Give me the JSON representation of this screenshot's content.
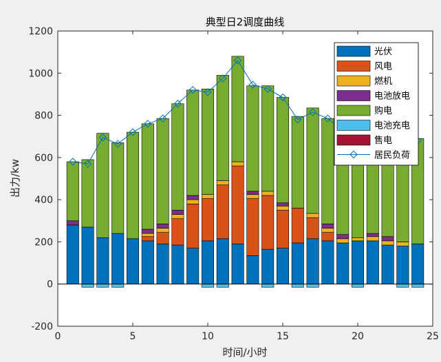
{
  "chart_data": {
    "type": "bar",
    "stacked": true,
    "title": "典型日2调度曲线",
    "xlabel": "时间/小时",
    "ylabel": "出力/kw",
    "xlim": [
      0,
      25
    ],
    "ylim": [
      -200,
      1200
    ],
    "xticks": [
      0,
      5,
      10,
      15,
      20,
      25
    ],
    "yticks": [
      -200,
      0,
      200,
      400,
      600,
      800,
      1000,
      1200
    ],
    "grid": false,
    "legend_position": "top-right",
    "x": [
      1,
      2,
      3,
      4,
      5,
      6,
      7,
      8,
      9,
      10,
      11,
      12,
      13,
      14,
      15,
      16,
      17,
      18,
      19,
      20,
      21,
      22,
      23,
      24
    ],
    "series": [
      {
        "name": "光伏",
        "color": "#0072BD",
        "values": [
          280,
          270,
          220,
          240,
          215,
          205,
          190,
          185,
          170,
          205,
          215,
          190,
          135,
          165,
          170,
          195,
          215,
          205,
          195,
          205,
          205,
          185,
          180,
          190
        ]
      },
      {
        "name": "风电",
        "color": "#D95319",
        "values": [
          0,
          0,
          0,
          0,
          0,
          20,
          55,
          125,
          210,
          200,
          255,
          370,
          270,
          255,
          180,
          165,
          100,
          40,
          0,
          0,
          0,
          0,
          0,
          0
        ]
      },
      {
        "name": "燃机",
        "color": "#EDB120",
        "values": [
          0,
          0,
          0,
          0,
          0,
          15,
          20,
          20,
          20,
          20,
          20,
          20,
          20,
          20,
          20,
          0,
          20,
          20,
          20,
          15,
          20,
          20,
          20,
          0
        ]
      },
      {
        "name": "电池放电",
        "color": "#7E2F8E",
        "values": [
          20,
          0,
          0,
          0,
          0,
          20,
          20,
          20,
          20,
          0,
          0,
          0,
          15,
          0,
          15,
          0,
          0,
          20,
          20,
          0,
          15,
          20,
          0,
          0
        ]
      },
      {
        "name": "购电",
        "color": "#77AC30",
        "values": [
          280,
          320,
          495,
          430,
          505,
          500,
          500,
          505,
          500,
          500,
          500,
          500,
          500,
          500,
          500,
          435,
          500,
          500,
          500,
          500,
          500,
          500,
          500,
          500
        ]
      },
      {
        "name": "电池充电",
        "color": "#4DBEEE",
        "values": [
          0,
          -15,
          -15,
          -15,
          0,
          0,
          0,
          0,
          0,
          -15,
          -15,
          0,
          0,
          -15,
          0,
          -15,
          -15,
          0,
          0,
          -15,
          0,
          0,
          -15,
          -15
        ]
      },
      {
        "name": "售电",
        "color": "#A2142F",
        "values": [
          0,
          0,
          0,
          0,
          0,
          0,
          0,
          0,
          0,
          0,
          0,
          0,
          0,
          0,
          0,
          0,
          0,
          0,
          0,
          0,
          0,
          0,
          0,
          0
        ]
      }
    ],
    "line_series": {
      "name": "居民负荷",
      "color": "#0072BD",
      "marker": "diamond",
      "values": [
        580,
        570,
        695,
        665,
        720,
        760,
        785,
        855,
        920,
        910,
        975,
        1060,
        945,
        925,
        885,
        780,
        815,
        785,
        725,
        720,
        725,
        700,
        690,
        680
      ]
    }
  }
}
